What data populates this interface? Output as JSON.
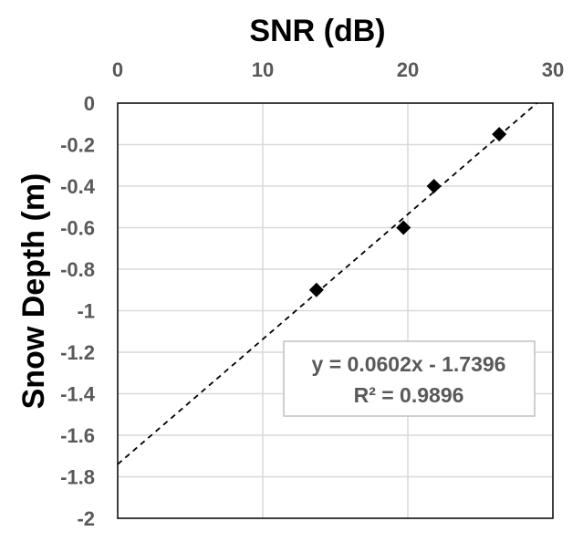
{
  "chart_data": {
    "type": "scatter",
    "xlabel": "SNR (dB)",
    "ylabel": "Snow Depth (m)",
    "xlim": [
      0,
      30
    ],
    "ylim": [
      -2,
      0
    ],
    "x_ticks": [
      "0",
      "10",
      "20",
      "30"
    ],
    "y_ticks": [
      "0",
      "-0.2",
      "-0.4",
      "-0.6",
      "-0.8",
      "-1",
      "-1.2",
      "-1.4",
      "-1.6",
      "-1.8",
      "-2"
    ],
    "x_axis_position": "top",
    "grid": true,
    "series": [
      {
        "marker": "diamond",
        "color": "#000000",
        "points": [
          {
            "x": 13.7,
            "y": -0.9
          },
          {
            "x": 19.7,
            "y": -0.6
          },
          {
            "x": 21.8,
            "y": -0.4
          },
          {
            "x": 26.3,
            "y": -0.15
          }
        ]
      }
    ],
    "trendline": {
      "style": "dashed",
      "slope": 0.0602,
      "intercept": -1.7396,
      "equation": "y = 0.0602x - 1.7396",
      "r_squared": "R² = 0.9896"
    }
  },
  "colors": {
    "grid": "#d9d9d9",
    "plot_border": "#000000",
    "tick_text": "#595959",
    "marker": "#000000",
    "trendline": "#000000"
  }
}
